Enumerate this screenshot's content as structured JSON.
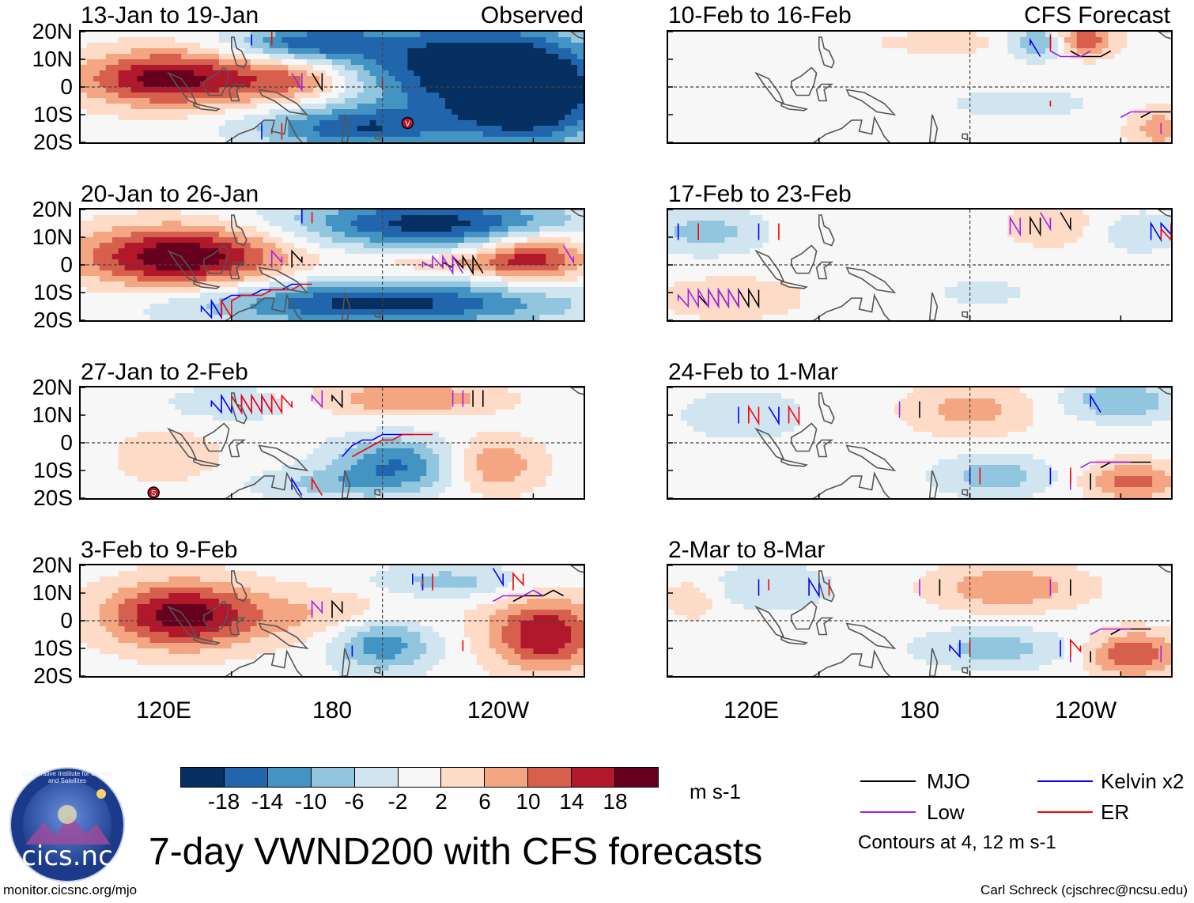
{
  "header": {
    "left_tag": "Observed",
    "right_tag": "CFS Forecast"
  },
  "panels": {
    "left": [
      {
        "title": "13-Jan to 19-Jan"
      },
      {
        "title": "20-Jan to 26-Jan"
      },
      {
        "title": "27-Jan to 2-Feb"
      },
      {
        "title": "3-Feb to 9-Feb"
      }
    ],
    "right": [
      {
        "title": "10-Feb to 16-Feb"
      },
      {
        "title": "17-Feb to 23-Feb"
      },
      {
        "title": "24-Feb to 1-Mar"
      },
      {
        "title": "2-Mar to 8-Mar"
      }
    ]
  },
  "axes": {
    "lat_labels": [
      "20N",
      "10N",
      "0",
      "10S",
      "20S"
    ],
    "lon_labels": [
      "120E",
      "180",
      "120W"
    ]
  },
  "colorbar": {
    "ticks": [
      "-18",
      "-14",
      "-10",
      "-6",
      "-2",
      "2",
      "6",
      "10",
      "14",
      "18"
    ],
    "colors": [
      "#053061",
      "#2166ac",
      "#4393c3",
      "#92c5de",
      "#d1e5f0",
      "#f7f7f7",
      "#fddbc7",
      "#f4a582",
      "#d6604d",
      "#b2182b",
      "#67001f"
    ],
    "units": "m s-1"
  },
  "legend": {
    "items": [
      {
        "name": "MJO",
        "color": "#000000"
      },
      {
        "name": "Kelvin x2",
        "color": "#0000ff"
      },
      {
        "name": "Low",
        "color": "#a020f0"
      },
      {
        "name": "ER",
        "color": "#ff0000"
      }
    ],
    "note": "Contours at 4, 12 m s-1"
  },
  "title": "7-day VWND200 with CFS forecasts",
  "footer": {
    "left": "monitor.cicsnc.org/mjo",
    "right": "Carl Schreck (cjschrec@ncsu.edu)"
  },
  "logo": {
    "text": "cics.nc",
    "ring_text": "Cooperative Institute for Climate and Satellites"
  },
  "storm_markers": [
    {
      "panel": "left-0",
      "symbol": "V"
    },
    {
      "panel": "left-2",
      "symbol": "S"
    }
  ],
  "chart_data": {
    "type": "heatmap",
    "variable": "VWND200 (7-day mean 200-hPa meridional wind)",
    "units": "m s-1",
    "lat_range": [
      -20,
      20
    ],
    "lon_range": [
      60,
      260
    ],
    "panel_rows": 4,
    "panel_columns": [
      "Observed",
      "CFS Forecast"
    ],
    "contour_levels": [
      4,
      12
    ],
    "panels": [
      {
        "name": "13-Jan to 19-Jan",
        "column": "Observed",
        "blobs": [
          {
            "lon": 95,
            "lat": 3,
            "value": 20,
            "rlon": 35,
            "rlat": 10
          },
          {
            "lon": 145,
            "lat": 2,
            "value": 12,
            "rlon": 25,
            "rlat": 8
          },
          {
            "lon": 210,
            "lat": 8,
            "value": -20,
            "rlon": 50,
            "rlat": 18
          },
          {
            "lon": 240,
            "lat": -5,
            "value": -20,
            "rlon": 30,
            "rlat": 18
          },
          {
            "lon": 170,
            "lat": -15,
            "value": -16,
            "rlon": 40,
            "rlat": 8
          },
          {
            "lon": 150,
            "lat": 16,
            "value": -14,
            "rlon": 30,
            "rlat": 6
          }
        ]
      },
      {
        "name": "20-Jan to 26-Jan",
        "column": "Observed",
        "blobs": [
          {
            "lon": 100,
            "lat": 3,
            "value": 22,
            "rlon": 40,
            "rlat": 11
          },
          {
            "lon": 240,
            "lat": 3,
            "value": 16,
            "rlon": 22,
            "rlat": 9
          },
          {
            "lon": 200,
            "lat": 15,
            "value": -20,
            "rlon": 55,
            "rlat": 9
          },
          {
            "lon": 180,
            "lat": -14,
            "value": -20,
            "rlon": 70,
            "rlat": 8
          },
          {
            "lon": 205,
            "lat": 1,
            "value": 6,
            "rlon": 30,
            "rlat": 4
          }
        ]
      },
      {
        "name": "27-Jan to 2-Feb",
        "column": "Observed",
        "blobs": [
          {
            "lon": 190,
            "lat": 16,
            "value": 10,
            "rlon": 35,
            "rlat": 6
          },
          {
            "lon": 185,
            "lat": -8,
            "value": -14,
            "rlon": 25,
            "rlat": 10
          },
          {
            "lon": 225,
            "lat": -8,
            "value": 10,
            "rlon": 18,
            "rlat": 10
          },
          {
            "lon": 95,
            "lat": -5,
            "value": 4,
            "rlon": 25,
            "rlat": 12
          },
          {
            "lon": 120,
            "lat": 14,
            "value": -6,
            "rlon": 25,
            "rlat": 6
          },
          {
            "lon": 155,
            "lat": -15,
            "value": -6,
            "rlon": 30,
            "rlat": 6
          }
        ]
      },
      {
        "name": "3-Feb to 9-Feb",
        "column": "Observed",
        "blobs": [
          {
            "lon": 100,
            "lat": 2,
            "value": 20,
            "rlon": 30,
            "rlat": 12
          },
          {
            "lon": 245,
            "lat": -5,
            "value": 18,
            "rlon": 22,
            "rlat": 13
          },
          {
            "lon": 180,
            "lat": -8,
            "value": -14,
            "rlon": 20,
            "rlat": 10
          },
          {
            "lon": 205,
            "lat": 14,
            "value": -8,
            "rlon": 30,
            "rlat": 6
          },
          {
            "lon": 160,
            "lat": 2,
            "value": 6,
            "rlon": 40,
            "rlat": 10
          }
        ]
      },
      {
        "name": "10-Feb to 16-Feb",
        "column": "CFS Forecast",
        "blobs": [
          {
            "lon": 225,
            "lat": 17,
            "value": 14,
            "rlon": 12,
            "rlat": 6
          },
          {
            "lon": 208,
            "lat": 16,
            "value": -12,
            "rlon": 12,
            "rlat": 6
          },
          {
            "lon": 255,
            "lat": -15,
            "value": 8,
            "rlon": 12,
            "rlat": 8
          },
          {
            "lon": 200,
            "lat": -6,
            "value": -4,
            "rlon": 30,
            "rlat": 6
          },
          {
            "lon": 170,
            "lat": 16,
            "value": 3,
            "rlon": 40,
            "rlat": 6
          }
        ]
      },
      {
        "name": "17-Feb to 23-Feb",
        "column": "CFS Forecast",
        "blobs": [
          {
            "lon": 75,
            "lat": 12,
            "value": -8,
            "rlon": 22,
            "rlat": 8
          },
          {
            "lon": 215,
            "lat": 14,
            "value": 6,
            "rlon": 20,
            "rlat": 8
          },
          {
            "lon": 245,
            "lat": 12,
            "value": -5,
            "rlon": 22,
            "rlat": 8
          },
          {
            "lon": 85,
            "lat": -12,
            "value": 5,
            "rlon": 30,
            "rlat": 8
          },
          {
            "lon": 185,
            "lat": -10,
            "value": -3,
            "rlon": 25,
            "rlat": 6
          }
        ]
      },
      {
        "name": "24-Feb to 1-Mar",
        "column": "CFS Forecast",
        "blobs": [
          {
            "lon": 180,
            "lat": 12,
            "value": 8,
            "rlon": 25,
            "rlat": 9
          },
          {
            "lon": 240,
            "lat": 15,
            "value": -10,
            "rlon": 22,
            "rlat": 7
          },
          {
            "lon": 190,
            "lat": -12,
            "value": -9,
            "rlon": 22,
            "rlat": 7
          },
          {
            "lon": 245,
            "lat": -14,
            "value": 12,
            "rlon": 18,
            "rlat": 7
          },
          {
            "lon": 90,
            "lat": 10,
            "value": -5,
            "rlon": 25,
            "rlat": 9
          }
        ]
      },
      {
        "name": "2-Mar to 8-Mar",
        "column": "CFS Forecast",
        "blobs": [
          {
            "lon": 195,
            "lat": 12,
            "value": 10,
            "rlon": 30,
            "rlat": 8
          },
          {
            "lon": 245,
            "lat": -12,
            "value": 14,
            "rlon": 18,
            "rlat": 8
          },
          {
            "lon": 190,
            "lat": -10,
            "value": -8,
            "rlon": 30,
            "rlat": 7
          },
          {
            "lon": 100,
            "lat": 12,
            "value": -6,
            "rlon": 25,
            "rlat": 8
          },
          {
            "lon": 70,
            "lat": 8,
            "value": 5,
            "rlon": 12,
            "rlat": 8
          }
        ]
      }
    ]
  }
}
